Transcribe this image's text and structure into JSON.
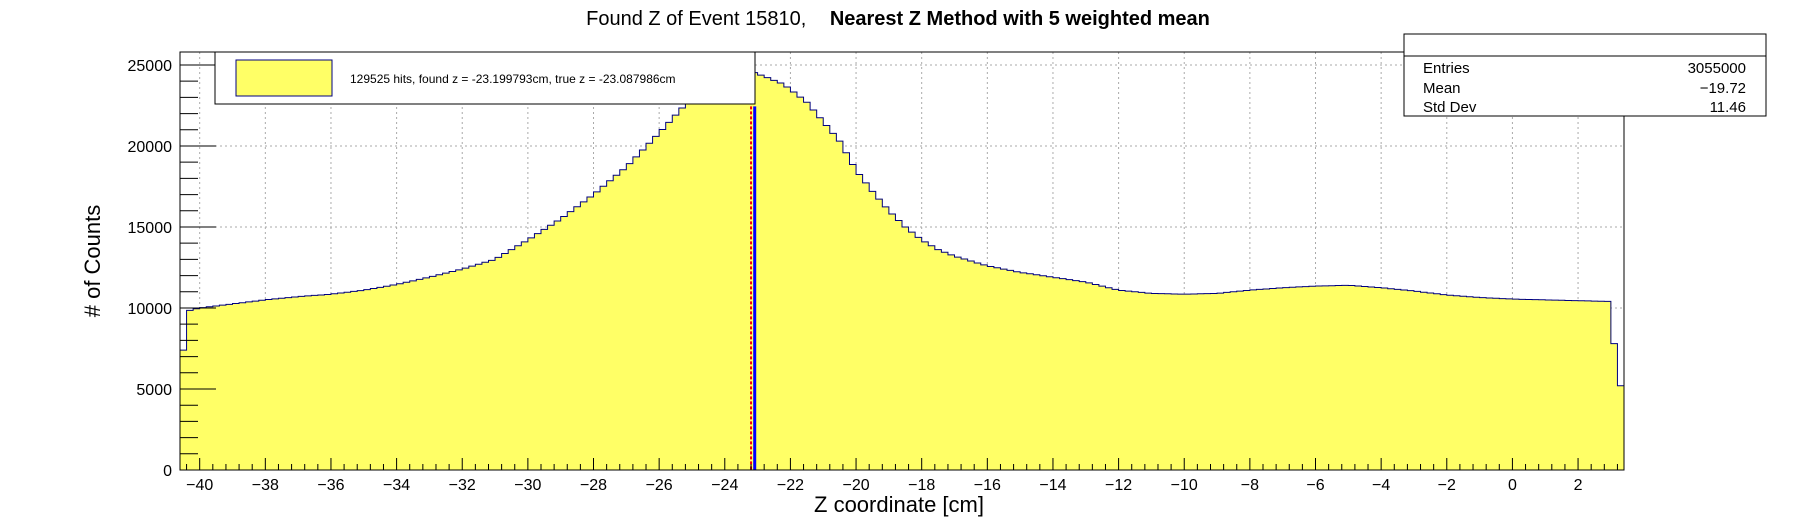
{
  "chart_data": {
    "type": "bar",
    "title_prefix": "Found Z of Event 15810,",
    "title_bold": "Nearest Z Method with 5 weighted mean",
    "xlabel": "Z coordinate [cm]",
    "ylabel": "# of Counts",
    "xlim": [
      -40.6,
      3.4
    ],
    "ylim": [
      0,
      25800
    ],
    "x_ticks": [
      -40,
      -38,
      -36,
      -34,
      -32,
      -30,
      -28,
      -26,
      -24,
      -22,
      -20,
      -18,
      -16,
      -14,
      -12,
      -10,
      -8,
      -6,
      -4,
      -2,
      0,
      2
    ],
    "y_ticks": [
      0,
      5000,
      10000,
      15000,
      20000,
      25000
    ],
    "grid": true,
    "bin_width": 0.2,
    "fill_color": "#ffff66",
    "line_color": "#000080",
    "found_z": -23.199793,
    "true_z": -23.087986,
    "found_z_color": "#ff0000",
    "true_z_color": "#0000ff",
    "profile_points": [
      [
        -40.6,
        5000
      ],
      [
        -40.4,
        9800
      ],
      [
        -40,
        10000
      ],
      [
        -39,
        10250
      ],
      [
        -38,
        10500
      ],
      [
        -37,
        10700
      ],
      [
        -36,
        10850
      ],
      [
        -35,
        11100
      ],
      [
        -34,
        11450
      ],
      [
        -33,
        11900
      ],
      [
        -32,
        12400
      ],
      [
        -31,
        13000
      ],
      [
        -30,
        14200
      ],
      [
        -29,
        15500
      ],
      [
        -28,
        17000
      ],
      [
        -27,
        18700
      ],
      [
        -26,
        20800
      ],
      [
        -25,
        23000
      ],
      [
        -24.2,
        24500
      ],
      [
        -23.6,
        25200
      ],
      [
        -23.2,
        24600
      ],
      [
        -22.8,
        24300
      ],
      [
        -22.2,
        23800
      ],
      [
        -21.5,
        22700
      ],
      [
        -21,
        21500
      ],
      [
        -20.5,
        20300
      ],
      [
        -20,
        18500
      ],
      [
        -19.5,
        17200
      ],
      [
        -19,
        16000
      ],
      [
        -18.5,
        15000
      ],
      [
        -18,
        14200
      ],
      [
        -17.5,
        13600
      ],
      [
        -17,
        13200
      ],
      [
        -16.5,
        12900
      ],
      [
        -16,
        12600
      ],
      [
        -15,
        12200
      ],
      [
        -14,
        11900
      ],
      [
        -13,
        11600
      ],
      [
        -12,
        11100
      ],
      [
        -11,
        10900
      ],
      [
        -10,
        10850
      ],
      [
        -9,
        10900
      ],
      [
        -8,
        11100
      ],
      [
        -7,
        11250
      ],
      [
        -6,
        11350
      ],
      [
        -5,
        11400
      ],
      [
        -4,
        11250
      ],
      [
        -3,
        11050
      ],
      [
        -2,
        10800
      ],
      [
        -1,
        10650
      ],
      [
        0,
        10550
      ],
      [
        1,
        10500
      ],
      [
        2,
        10450
      ],
      [
        3,
        10400
      ],
      [
        3.2,
        5200
      ]
    ],
    "legend": {
      "entry": "129525 hits, found z = -23.199793cm, true z = -23.087986cm",
      "placement": "top-left"
    },
    "stats": {
      "entries_label": "Entries",
      "entries_value": "3055000",
      "mean_label": "Mean",
      "mean_value": "−19.72",
      "stddev_label": "Std Dev",
      "stddev_value": "11.46",
      "placement": "top-right"
    }
  }
}
